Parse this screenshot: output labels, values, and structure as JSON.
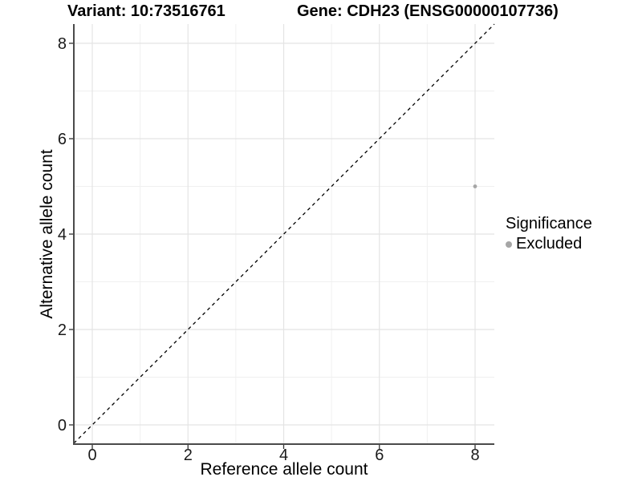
{
  "titles": {
    "variant": "Variant: 10:73516761",
    "gene": "Gene: CDH23 (ENSG00000107736)"
  },
  "chart_data": {
    "type": "scatter",
    "title": "Variant: 10:73516761",
    "subtitle": "Gene: CDH23 (ENSG00000107736)",
    "xlabel": "Reference allele count",
    "ylabel": "Alternative allele count",
    "xlim": [
      -0.42,
      8.42
    ],
    "ylim": [
      -0.42,
      8.42
    ],
    "x_ticks": {
      "values": [
        0,
        2,
        4,
        6,
        8
      ],
      "labels": [
        "0",
        "2",
        "4",
        "6",
        "8"
      ]
    },
    "y_ticks": {
      "values": [
        0,
        2,
        4,
        6,
        8
      ],
      "labels": [
        "0",
        "2",
        "4",
        "6",
        "8"
      ]
    },
    "minor_tick_values": [
      1,
      3,
      5,
      7
    ],
    "grid": "on",
    "series": [
      {
        "name": "Excluded",
        "color": "#a6a6a6",
        "points": [
          {
            "x": 8,
            "y": 5
          }
        ]
      }
    ],
    "reference_line": {
      "type": "identity",
      "style": "dashed",
      "color": "#000000"
    },
    "legend": {
      "title": "Significance",
      "position": "right",
      "entries": [
        {
          "label": "Excluded",
          "color": "#a6a6a6"
        }
      ]
    }
  },
  "style": {
    "grid_major_color": "#e4e4e4",
    "grid_minor_color": "#f0f0f0",
    "axis_line_color": "#4a4a4a",
    "tick_mark_color": "#333333",
    "tick_label_color": "#1a1a1a",
    "point_color": "#a6a6a6",
    "background": "#ffffff"
  }
}
